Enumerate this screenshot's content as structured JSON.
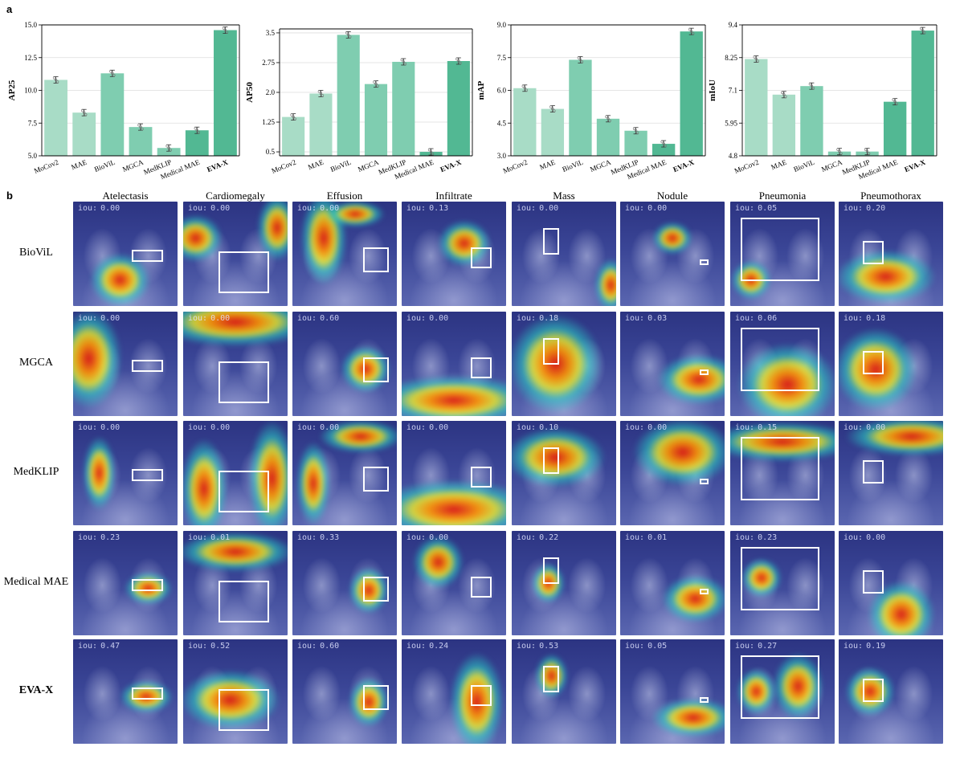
{
  "panel_a_label": "a",
  "panel_b_label": "b",
  "colors": {
    "bar_light": "#a8dcc6",
    "bar_mid": "#7fcdb0",
    "bar_dark": "#52b893",
    "grid": "#dddddd"
  },
  "chart_data": [
    {
      "type": "bar",
      "ylabel": "AP25",
      "categories": [
        "MoCov2",
        "MAE",
        "BioViL",
        "MGCA",
        "MedKLIP",
        "Medical MAE",
        "EVA-X"
      ],
      "values": [
        10.8,
        8.3,
        11.3,
        7.2,
        5.6,
        6.95,
        14.6
      ],
      "ylim": [
        5.0,
        15.0
      ],
      "yticks": [
        "5.0",
        "7.5",
        "10.0",
        "12.5",
        "15.0"
      ],
      "grid": true,
      "bold_category": "EVA-X"
    },
    {
      "type": "bar",
      "ylabel": "AP50",
      "categories": [
        "MoCov2",
        "MAE",
        "BioViL",
        "MGCA",
        "MedKLIP",
        "Medical MAE",
        "EVA-X"
      ],
      "values": [
        1.38,
        1.97,
        3.45,
        2.21,
        2.77,
        0.5,
        2.79
      ],
      "ylim": [
        0.4,
        3.6
      ],
      "yticks": [
        "0.5",
        "1.25",
        "2.0",
        "2.75",
        "3.5"
      ],
      "grid": true,
      "bold_category": "EVA-X"
    },
    {
      "type": "bar",
      "ylabel": "mAP",
      "categories": [
        "MoCov2",
        "MAE",
        "BioViL",
        "MGCA",
        "MedKLIP",
        "Medical MAE",
        "EVA-X"
      ],
      "values": [
        6.1,
        5.15,
        7.4,
        4.7,
        4.15,
        3.55,
        8.7
      ],
      "ylim": [
        3.0,
        9.0
      ],
      "yticks": [
        "3.0",
        "4.5",
        "6.0",
        "7.5",
        "9.0"
      ],
      "grid": true,
      "bold_category": "EVA-X"
    },
    {
      "type": "bar",
      "ylabel": "mIoU",
      "categories": [
        "MoCov2",
        "MAE",
        "BioViL",
        "MGCA",
        "MedKLIP",
        "Medical MAE",
        "EVA-X"
      ],
      "values": [
        8.2,
        6.95,
        7.25,
        4.95,
        4.95,
        6.7,
        9.2
      ],
      "ylim": [
        4.8,
        9.4
      ],
      "yticks": [
        "4.8",
        "5.95",
        "7.1",
        "8.25",
        "9.4"
      ],
      "grid": true,
      "bold_category": "EVA-X"
    }
  ],
  "grid": {
    "columns": [
      "Atelectasis",
      "Cardiomegaly",
      "Effusion",
      "Infiltrate",
      "Mass",
      "Nodule",
      "Pneumonia",
      "Pneumothorax"
    ],
    "iou_prefix": "iou:",
    "rows": [
      {
        "label": "BioViL",
        "bold": false,
        "iou": [
          "0.00",
          "0.00",
          "0.00",
          "0.13",
          "0.00",
          "0.00",
          "0.05",
          "0.20"
        ]
      },
      {
        "label": "MGCA",
        "bold": false,
        "iou": [
          "0.00",
          "0.00",
          "0.60",
          "0.00",
          "0.18",
          "0.03",
          "0.06",
          "0.18"
        ]
      },
      {
        "label": "MedKLIP",
        "bold": false,
        "iou": [
          "0.00",
          "0.00",
          "0.00",
          "0.00",
          "0.10",
          "0.00",
          "0.15",
          "0.00"
        ]
      },
      {
        "label": "Medical MAE",
        "bold": false,
        "iou": [
          "0.23",
          "0.01",
          "0.33",
          "0.00",
          "0.22",
          "0.01",
          "0.23",
          "0.00"
        ]
      },
      {
        "label": "EVA-X",
        "bold": true,
        "iou": [
          "0.47",
          "0.52",
          "0.60",
          "0.24",
          "0.53",
          "0.05",
          "0.27",
          "0.19"
        ]
      }
    ]
  }
}
